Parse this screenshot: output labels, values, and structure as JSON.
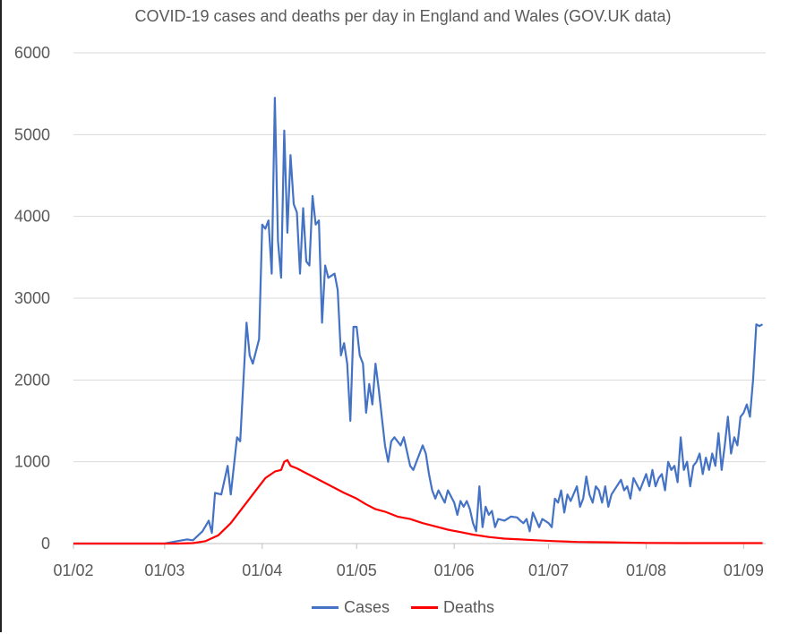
{
  "colors": {
    "cases": "#4472c4",
    "deaths": "#ff0000",
    "grid": "#d9d9d9",
    "text": "#595959"
  },
  "chart_data": {
    "type": "line",
    "title": "COVID-19 cases and deaths per day in England and Wales (GOV.UK data)",
    "xlabel": "",
    "ylabel": "",
    "x_start": "2020-02-01",
    "x_end": "2020-09-08",
    "ylim": [
      0,
      6000
    ],
    "y_ticks": [
      "0",
      "1000",
      "2000",
      "3000",
      "4000",
      "5000",
      "6000"
    ],
    "x_ticks": [
      {
        "label": "01/02",
        "date": "2020-02-01"
      },
      {
        "label": "01/03",
        "date": "2020-03-01"
      },
      {
        "label": "01/04",
        "date": "2020-04-01"
      },
      {
        "label": "01/05",
        "date": "2020-05-01"
      },
      {
        "label": "01/06",
        "date": "2020-06-01"
      },
      {
        "label": "01/07",
        "date": "2020-07-01"
      },
      {
        "label": "01/08",
        "date": "2020-08-01"
      },
      {
        "label": "01/09",
        "date": "2020-09-01"
      }
    ],
    "grid": true,
    "legend_position": "bottom",
    "series": [
      {
        "name": "Cases",
        "color": "#4472c4",
        "points": [
          [
            "2020-02-01",
            0
          ],
          [
            "2020-03-01",
            0
          ],
          [
            "2020-03-05",
            30
          ],
          [
            "2020-03-08",
            50
          ],
          [
            "2020-03-10",
            40
          ],
          [
            "2020-03-13",
            150
          ],
          [
            "2020-03-15",
            280
          ],
          [
            "2020-03-16",
            130
          ],
          [
            "2020-03-17",
            620
          ],
          [
            "2020-03-19",
            600
          ],
          [
            "2020-03-21",
            950
          ],
          [
            "2020-03-22",
            600
          ],
          [
            "2020-03-24",
            1300
          ],
          [
            "2020-03-25",
            1250
          ],
          [
            "2020-03-27",
            2700
          ],
          [
            "2020-03-28",
            2300
          ],
          [
            "2020-03-29",
            2200
          ],
          [
            "2020-03-31",
            2500
          ],
          [
            "2020-04-01",
            3900
          ],
          [
            "2020-04-02",
            3850
          ],
          [
            "2020-04-03",
            3950
          ],
          [
            "2020-04-04",
            3300
          ],
          [
            "2020-04-05",
            5450
          ],
          [
            "2020-04-06",
            3700
          ],
          [
            "2020-04-07",
            3250
          ],
          [
            "2020-04-08",
            5050
          ],
          [
            "2020-04-09",
            3800
          ],
          [
            "2020-04-10",
            4750
          ],
          [
            "2020-04-11",
            4150
          ],
          [
            "2020-04-12",
            4050
          ],
          [
            "2020-04-13",
            3300
          ],
          [
            "2020-04-14",
            4100
          ],
          [
            "2020-04-15",
            3450
          ],
          [
            "2020-04-16",
            3400
          ],
          [
            "2020-04-17",
            4250
          ],
          [
            "2020-04-18",
            3900
          ],
          [
            "2020-04-19",
            3950
          ],
          [
            "2020-04-20",
            2700
          ],
          [
            "2020-04-21",
            3400
          ],
          [
            "2020-04-22",
            3250
          ],
          [
            "2020-04-24",
            3300
          ],
          [
            "2020-04-25",
            3100
          ],
          [
            "2020-04-26",
            2300
          ],
          [
            "2020-04-27",
            2450
          ],
          [
            "2020-04-28",
            2200
          ],
          [
            "2020-04-29",
            1500
          ],
          [
            "2020-04-30",
            2650
          ],
          [
            "2020-05-01",
            2650
          ],
          [
            "2020-05-02",
            2300
          ],
          [
            "2020-05-03",
            2200
          ],
          [
            "2020-05-04",
            1600
          ],
          [
            "2020-05-05",
            1950
          ],
          [
            "2020-05-06",
            1700
          ],
          [
            "2020-05-07",
            2200
          ],
          [
            "2020-05-08",
            1900
          ],
          [
            "2020-05-09",
            1550
          ],
          [
            "2020-05-10",
            1200
          ],
          [
            "2020-05-11",
            1000
          ],
          [
            "2020-05-12",
            1250
          ],
          [
            "2020-05-13",
            1300
          ],
          [
            "2020-05-15",
            1200
          ],
          [
            "2020-05-16",
            1300
          ],
          [
            "2020-05-18",
            950
          ],
          [
            "2020-05-19",
            900
          ],
          [
            "2020-05-20",
            1000
          ],
          [
            "2020-05-22",
            1200
          ],
          [
            "2020-05-23",
            1100
          ],
          [
            "2020-05-24",
            850
          ],
          [
            "2020-05-25",
            650
          ],
          [
            "2020-05-26",
            550
          ],
          [
            "2020-05-27",
            650
          ],
          [
            "2020-05-29",
            500
          ],
          [
            "2020-05-30",
            650
          ],
          [
            "2020-06-01",
            500
          ],
          [
            "2020-06-02",
            350
          ],
          [
            "2020-06-03",
            520
          ],
          [
            "2020-06-04",
            450
          ],
          [
            "2020-06-05",
            520
          ],
          [
            "2020-06-06",
            420
          ],
          [
            "2020-06-07",
            250
          ],
          [
            "2020-06-08",
            150
          ],
          [
            "2020-06-09",
            700
          ],
          [
            "2020-06-10",
            200
          ],
          [
            "2020-06-11",
            450
          ],
          [
            "2020-06-12",
            350
          ],
          [
            "2020-06-13",
            400
          ],
          [
            "2020-06-14",
            200
          ],
          [
            "2020-06-15",
            300
          ],
          [
            "2020-06-17",
            280
          ],
          [
            "2020-06-19",
            330
          ],
          [
            "2020-06-21",
            320
          ],
          [
            "2020-06-22",
            280
          ],
          [
            "2020-06-23",
            250
          ],
          [
            "2020-06-24",
            300
          ],
          [
            "2020-06-25",
            150
          ],
          [
            "2020-06-26",
            380
          ],
          [
            "2020-06-28",
            200
          ],
          [
            "2020-06-29",
            300
          ],
          [
            "2020-07-01",
            250
          ],
          [
            "2020-07-02",
            200
          ],
          [
            "2020-07-03",
            550
          ],
          [
            "2020-07-04",
            500
          ],
          [
            "2020-07-05",
            650
          ],
          [
            "2020-07-06",
            380
          ],
          [
            "2020-07-07",
            600
          ],
          [
            "2020-07-08",
            520
          ],
          [
            "2020-07-10",
            700
          ],
          [
            "2020-07-11",
            450
          ],
          [
            "2020-07-12",
            550
          ],
          [
            "2020-07-13",
            820
          ],
          [
            "2020-07-14",
            600
          ],
          [
            "2020-07-15",
            500
          ],
          [
            "2020-07-16",
            700
          ],
          [
            "2020-07-17",
            650
          ],
          [
            "2020-07-18",
            500
          ],
          [
            "2020-07-19",
            700
          ],
          [
            "2020-07-20",
            450
          ],
          [
            "2020-07-21",
            600
          ],
          [
            "2020-07-23",
            720
          ],
          [
            "2020-07-24",
            780
          ],
          [
            "2020-07-25",
            650
          ],
          [
            "2020-07-26",
            700
          ],
          [
            "2020-07-27",
            550
          ],
          [
            "2020-07-28",
            800
          ],
          [
            "2020-07-30",
            650
          ],
          [
            "2020-08-01",
            850
          ],
          [
            "2020-08-02",
            700
          ],
          [
            "2020-08-03",
            900
          ],
          [
            "2020-08-04",
            700
          ],
          [
            "2020-08-05",
            800
          ],
          [
            "2020-08-06",
            850
          ],
          [
            "2020-08-07",
            650
          ],
          [
            "2020-08-08",
            1000
          ],
          [
            "2020-08-09",
            900
          ],
          [
            "2020-08-10",
            950
          ],
          [
            "2020-08-11",
            750
          ],
          [
            "2020-08-12",
            1300
          ],
          [
            "2020-08-13",
            900
          ],
          [
            "2020-08-14",
            1000
          ],
          [
            "2020-08-15",
            700
          ],
          [
            "2020-08-16",
            950
          ],
          [
            "2020-08-17",
            1000
          ],
          [
            "2020-08-18",
            1100
          ],
          [
            "2020-08-19",
            850
          ],
          [
            "2020-08-20",
            1050
          ],
          [
            "2020-08-21",
            900
          ],
          [
            "2020-08-22",
            1100
          ],
          [
            "2020-08-23",
            950
          ],
          [
            "2020-08-24",
            1350
          ],
          [
            "2020-08-25",
            900
          ],
          [
            "2020-08-26",
            1200
          ],
          [
            "2020-08-27",
            1550
          ],
          [
            "2020-08-28",
            1100
          ],
          [
            "2020-08-29",
            1300
          ],
          [
            "2020-08-30",
            1200
          ],
          [
            "2020-08-31",
            1550
          ],
          [
            "2020-09-01",
            1600
          ],
          [
            "2020-09-02",
            1700
          ],
          [
            "2020-09-03",
            1550
          ],
          [
            "2020-09-04",
            2000
          ],
          [
            "2020-09-05",
            2680
          ],
          [
            "2020-09-06",
            2660
          ],
          [
            "2020-09-07",
            2680
          ]
        ]
      },
      {
        "name": "Deaths",
        "color": "#ff0000",
        "points": [
          [
            "2020-02-01",
            0
          ],
          [
            "2020-03-05",
            0
          ],
          [
            "2020-03-10",
            5
          ],
          [
            "2020-03-14",
            30
          ],
          [
            "2020-03-18",
            100
          ],
          [
            "2020-03-22",
            250
          ],
          [
            "2020-03-26",
            450
          ],
          [
            "2020-03-30",
            650
          ],
          [
            "2020-04-02",
            800
          ],
          [
            "2020-04-05",
            880
          ],
          [
            "2020-04-07",
            900
          ],
          [
            "2020-04-08",
            1000
          ],
          [
            "2020-04-09",
            1020
          ],
          [
            "2020-04-10",
            950
          ],
          [
            "2020-04-12",
            920
          ],
          [
            "2020-04-15",
            860
          ],
          [
            "2020-04-18",
            800
          ],
          [
            "2020-04-21",
            740
          ],
          [
            "2020-04-24",
            680
          ],
          [
            "2020-04-27",
            620
          ],
          [
            "2020-05-01",
            550
          ],
          [
            "2020-05-04",
            480
          ],
          [
            "2020-05-07",
            420
          ],
          [
            "2020-05-10",
            390
          ],
          [
            "2020-05-14",
            330
          ],
          [
            "2020-05-18",
            300
          ],
          [
            "2020-05-22",
            250
          ],
          [
            "2020-05-26",
            210
          ],
          [
            "2020-05-30",
            170
          ],
          [
            "2020-06-03",
            140
          ],
          [
            "2020-06-07",
            110
          ],
          [
            "2020-06-12",
            80
          ],
          [
            "2020-06-17",
            60
          ],
          [
            "2020-06-22",
            50
          ],
          [
            "2020-06-27",
            40
          ],
          [
            "2020-07-03",
            30
          ],
          [
            "2020-07-10",
            20
          ],
          [
            "2020-07-20",
            15
          ],
          [
            "2020-08-01",
            8
          ],
          [
            "2020-08-15",
            5
          ],
          [
            "2020-09-07",
            5
          ]
        ]
      }
    ]
  }
}
